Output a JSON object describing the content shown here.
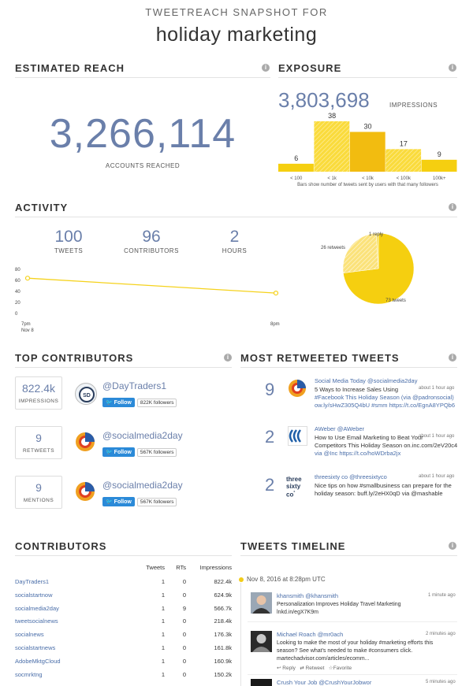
{
  "header": {
    "subtitle": "TWEETREACH SNAPSHOT FOR",
    "title": "holiday marketing"
  },
  "reach": {
    "title": "ESTIMATED REACH",
    "value": "3,266,114",
    "label": "ACCOUNTS REACHED"
  },
  "exposure": {
    "title": "EXPOSURE",
    "value": "3,803,698",
    "label": "IMPRESSIONS",
    "caption": "Bars show number of tweets sent by users with that many followers",
    "chart_data": {
      "type": "bar",
      "categories": [
        "< 100",
        "< 1k",
        "< 10k",
        "< 100k",
        "100k+"
      ],
      "values": [
        6,
        38,
        30,
        17,
        9
      ],
      "ylim": [
        0,
        38
      ]
    }
  },
  "activity": {
    "title": "ACTIVITY",
    "stats": [
      {
        "value": "100",
        "label": "TWEETS"
      },
      {
        "value": "96",
        "label": "CONTRIBUTORS"
      },
      {
        "value": "2",
        "label": "HOURS"
      }
    ],
    "line_chart": {
      "type": "line",
      "y_ticks": [
        "80",
        "60",
        "40",
        "20",
        "0"
      ],
      "x_start": "7pm",
      "x_start_sub": "Nov 8",
      "x_end": "8pm",
      "x": [
        0,
        1
      ],
      "y": [
        64,
        37
      ],
      "ylim": [
        0,
        80
      ]
    },
    "pie_chart": {
      "type": "pie",
      "labels": [
        "73 tweets",
        "26 retweets",
        "1 reply"
      ],
      "values": [
        73,
        26,
        1
      ]
    }
  },
  "top_contributors": {
    "title": "TOP CONTRIBUTORS",
    "items": [
      {
        "stat": "822.4k",
        "stat_label": "IMPRESSIONS",
        "handle": "@DayTraders1",
        "follow": "Follow",
        "followers": "822K followers"
      },
      {
        "stat": "9",
        "stat_label": "RETWEETS",
        "handle": "@socialmedia2day",
        "follow": "Follow",
        "followers": "567K followers"
      },
      {
        "stat": "9",
        "stat_label": "MENTIONS",
        "handle": "@socialmedia2day",
        "follow": "Follow",
        "followers": "567K followers"
      }
    ]
  },
  "most_retweeted": {
    "title": "MOST RETWEETED TWEETS",
    "items": [
      {
        "count": "9",
        "name": "Social Media Today @socialmedia2day",
        "time": "about 1 hour ago",
        "l1": "5 Ways to Increase Sales Using",
        "l2": "#Facebook This Holiday Season (via @padronsocial)",
        "l3": "ow.ly/sHwZ305Q4bU #smm https://t.co/EgnA8YPQb6"
      },
      {
        "count": "2",
        "name": "AWeber @AWeber",
        "time": "about 1 hour ago",
        "l1": "How to Use Email Marketing to Beat Your",
        "l2": "Competitors This Holiday Season on.inc.com/2eV20c4",
        "l3": "via @Inc https://t.co/hoWDrba2jx"
      },
      {
        "count": "2",
        "name": "threesixty co @threesixtyco",
        "time": "about 1 hour ago",
        "l1": "Nice tips on how #smallbusiness can prepare for the",
        "l2": "holiday season: buff.ly/2eHX0qD via @mashable",
        "l3": ""
      }
    ]
  },
  "contributors": {
    "title": "CONTRIBUTORS",
    "headers": [
      "Tweets",
      "RTs",
      "Impressions"
    ],
    "rows": [
      [
        "DayTraders1",
        "1",
        "0",
        "822.4k"
      ],
      [
        "socialstartnow",
        "1",
        "0",
        "624.9k"
      ],
      [
        "socialmedia2day",
        "1",
        "9",
        "566.7k"
      ],
      [
        "tweetsocialnews",
        "1",
        "0",
        "218.4k"
      ],
      [
        "socialnews",
        "1",
        "0",
        "176.3k"
      ],
      [
        "socialstartnews",
        "1",
        "0",
        "161.8k"
      ],
      [
        "AdobeMktgCloud",
        "1",
        "0",
        "160.9k"
      ],
      [
        "socmrktng",
        "1",
        "0",
        "150.2k"
      ]
    ]
  },
  "timeline": {
    "title": "TWEETS TIMELINE",
    "date": "Nov 8, 2016 at 8:28pm UTC",
    "items": [
      {
        "name": "khansmith @khansmith",
        "time": "1 minute ago",
        "l1": "Personalization Improves Holiday Travel Marketing",
        "l2": "lnkd.in/egX7K9m",
        "l3": ""
      },
      {
        "name": "Michael Roach @mr0ach",
        "time": "2 minutes ago",
        "l1": "Looking to make the most of your holiday #marketing efforts this",
        "l2": "season? See what's needed to make #consumers click.",
        "l3": "martechadvisor.com/articles/ecomm..."
      },
      {
        "name": "Crush Your Job @CrushYourJobwor",
        "time": "5 minutes ago",
        "l1": "",
        "l2": "",
        "l3": ""
      }
    ],
    "actions": {
      "reply": "Reply",
      "retweet": "Retweet",
      "favorite": "Favorite"
    }
  }
}
